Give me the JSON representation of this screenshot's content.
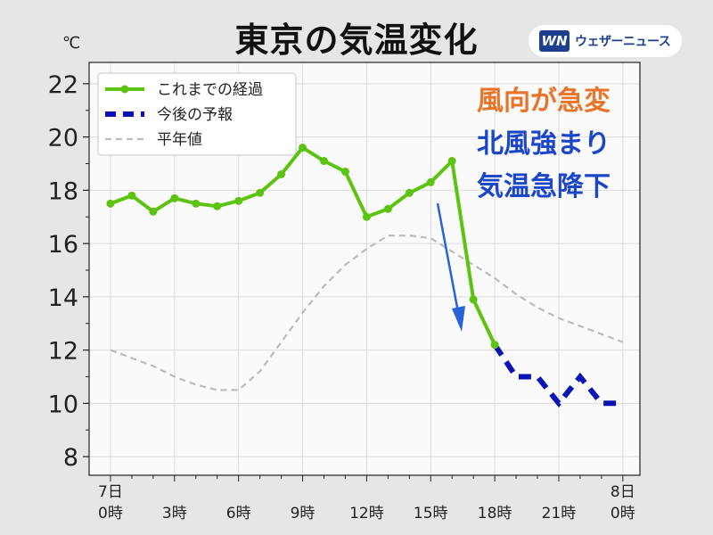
{
  "header": {
    "title": "東京の気温変化",
    "brand_logo": "WN",
    "brand_name": "ウェザーニュース"
  },
  "annotations": {
    "lines": [
      "風向が急変",
      "北風強まり",
      "気温急降下"
    ],
    "colors": [
      "#e8742a",
      "#1b46c8",
      "#1b46c8"
    ],
    "arrow_color": "#2a62d8"
  },
  "colors": {
    "observed": "#5cc410",
    "forecast": "#0a14b4",
    "normal": "#bcbcbc",
    "plot_bg": "#fafafa"
  },
  "chart_data": {
    "type": "line",
    "y_unit": "℃",
    "ylim": [
      7.3,
      22.8
    ],
    "yticks": [
      8,
      10,
      12,
      14,
      16,
      18,
      20,
      22
    ],
    "xlim": [
      -1,
      24.8
    ],
    "xticks": [
      {
        "x": 0,
        "label": [
          "7日",
          "0時"
        ]
      },
      {
        "x": 3,
        "label": [
          "",
          "3時"
        ]
      },
      {
        "x": 6,
        "label": [
          "",
          "6時"
        ]
      },
      {
        "x": 9,
        "label": [
          "",
          "9時"
        ]
      },
      {
        "x": 12,
        "label": [
          "",
          "12時"
        ]
      },
      {
        "x": 15,
        "label": [
          "",
          "15時"
        ]
      },
      {
        "x": 18,
        "label": [
          "",
          "18時"
        ]
      },
      {
        "x": 21,
        "label": [
          "",
          "21時"
        ]
      },
      {
        "x": 24,
        "label": [
          "8日",
          "0時"
        ]
      }
    ],
    "grid": true,
    "legend_position": "top-left",
    "series": [
      {
        "name": "これまでの経過",
        "style": "solid-markers",
        "x": [
          0,
          1,
          2,
          3,
          4,
          5,
          6,
          7,
          8,
          9,
          10,
          11,
          12,
          13,
          14,
          15,
          16,
          17,
          18
        ],
        "y": [
          17.5,
          17.8,
          17.2,
          17.7,
          17.5,
          17.4,
          17.6,
          17.9,
          18.6,
          19.6,
          19.1,
          18.7,
          17.0,
          17.3,
          17.9,
          18.3,
          19.1,
          13.9,
          12.2
        ]
      },
      {
        "name": "今後の予報",
        "style": "dashed-thick",
        "x": [
          18,
          19,
          20,
          21,
          22,
          23,
          24
        ],
        "y": [
          12.2,
          11.0,
          11.0,
          10.0,
          11.0,
          10.0,
          10.0
        ]
      },
      {
        "name": "平年値",
        "style": "dashed-thin",
        "x": [
          0,
          1,
          2,
          3,
          4,
          5,
          6,
          7,
          8,
          9,
          10,
          11,
          12,
          13,
          14,
          15,
          16,
          17,
          18,
          19,
          20,
          21,
          22,
          23,
          24
        ],
        "y": [
          12.0,
          11.7,
          11.4,
          11.0,
          10.7,
          10.5,
          10.5,
          11.2,
          12.3,
          13.4,
          14.4,
          15.2,
          15.8,
          16.3,
          16.3,
          16.2,
          15.7,
          15.2,
          14.7,
          14.1,
          13.6,
          13.2,
          12.9,
          12.6,
          12.3
        ]
      }
    ]
  }
}
